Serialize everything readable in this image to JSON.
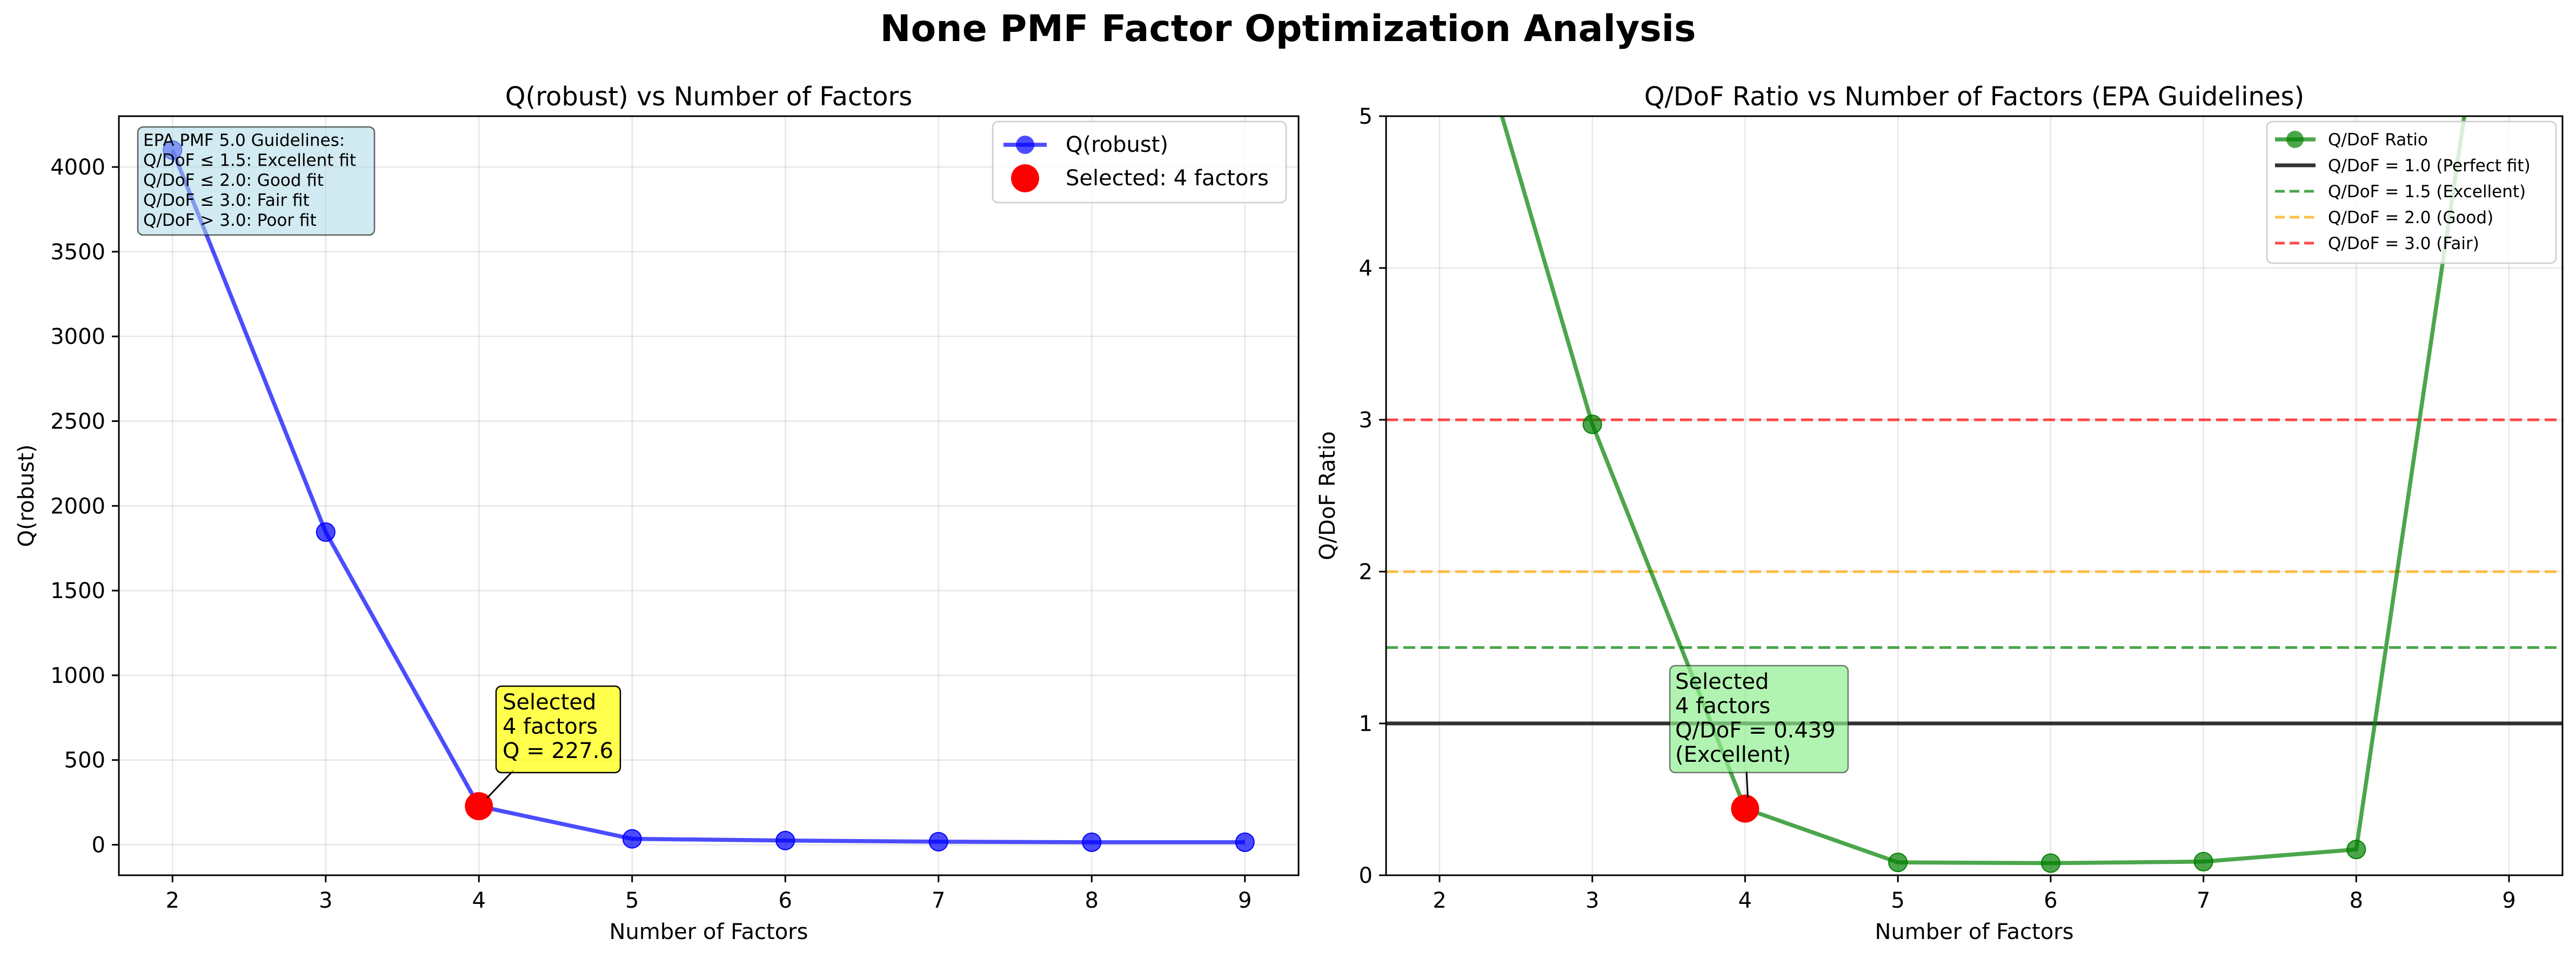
{
  "suptitle": "None PMF Factor Optimization Analysis",
  "chart_data": [
    {
      "type": "line",
      "title": "Q(robust) vs Number of Factors",
      "xlabel": "Number of Factors",
      "ylabel": "Q(robust)",
      "xlim": [
        1.65,
        9.35
      ],
      "ylim": [
        -180,
        4300
      ],
      "xticks": [
        2,
        3,
        4,
        5,
        6,
        7,
        8,
        9
      ],
      "yticks": [
        0,
        500,
        1000,
        1500,
        2000,
        2500,
        3000,
        3500,
        4000
      ],
      "grid": true,
      "legend_position": "top-right",
      "series": [
        {
          "name": "Q(robust)",
          "color": "#0000ff",
          "x": [
            2,
            3,
            4,
            5,
            6,
            7,
            8,
            9
          ],
          "y": [
            4100,
            1845,
            227.6,
            35,
            25,
            18,
            15,
            15
          ]
        }
      ],
      "selected": {
        "name": "Selected: 4 factors",
        "x": 4,
        "y": 227.6,
        "color": "#ff0000"
      },
      "annotation": {
        "lines": [
          "Selected",
          "4 factors",
          "Q = 227.6"
        ],
        "color": "#ffff00"
      },
      "guidelines_box": {
        "lines": [
          "EPA PMF 5.0 Guidelines:",
          "Q/DoF ≤ 1.5: Excellent fit",
          "Q/DoF ≤ 2.0: Good fit",
          "Q/DoF ≤ 3.0: Fair fit",
          "Q/DoF > 3.0: Poor fit"
        ],
        "color": "#add8e6"
      }
    },
    {
      "type": "line",
      "title": "Q/DoF Ratio vs Number of Factors (EPA Guidelines)",
      "xlabel": "Number of Factors",
      "ylabel": "Q/DoF Ratio",
      "xlim": [
        1.65,
        9.35
      ],
      "ylim": [
        0,
        5
      ],
      "xticks": [
        2,
        3,
        4,
        5,
        6,
        7,
        8,
        9
      ],
      "yticks": [
        0,
        1,
        2,
        3,
        4,
        5
      ],
      "grid": true,
      "legend_position": "top-right",
      "series": [
        {
          "name": "Q/DoF Ratio",
          "color": "#008000",
          "x": [
            2,
            3,
            4,
            5,
            6,
            7,
            8,
            9
          ],
          "y": [
            6.4,
            2.97,
            0.439,
            0.085,
            0.08,
            0.09,
            0.17,
            7.0
          ]
        }
      ],
      "reference_lines": [
        {
          "name": "Q/DoF = 1.0 (Perfect fit)",
          "y": 1.0,
          "color": "#000000",
          "style": "solid"
        },
        {
          "name": "Q/DoF = 1.5 (Excellent)",
          "y": 1.5,
          "color": "#008000",
          "style": "dashed"
        },
        {
          "name": "Q/DoF = 2.0 (Good)",
          "y": 2.0,
          "color": "#ffa500",
          "style": "dashed"
        },
        {
          "name": "Q/DoF = 3.0 (Fair)",
          "y": 3.0,
          "color": "#ff0000",
          "style": "dashed"
        }
      ],
      "selected": {
        "x": 4,
        "y": 0.439,
        "color": "#ff0000"
      },
      "annotation": {
        "lines": [
          "Selected",
          "4 factors",
          "Q/DoF = 0.439",
          "(Excellent)"
        ],
        "color": "#90ee90"
      }
    }
  ]
}
